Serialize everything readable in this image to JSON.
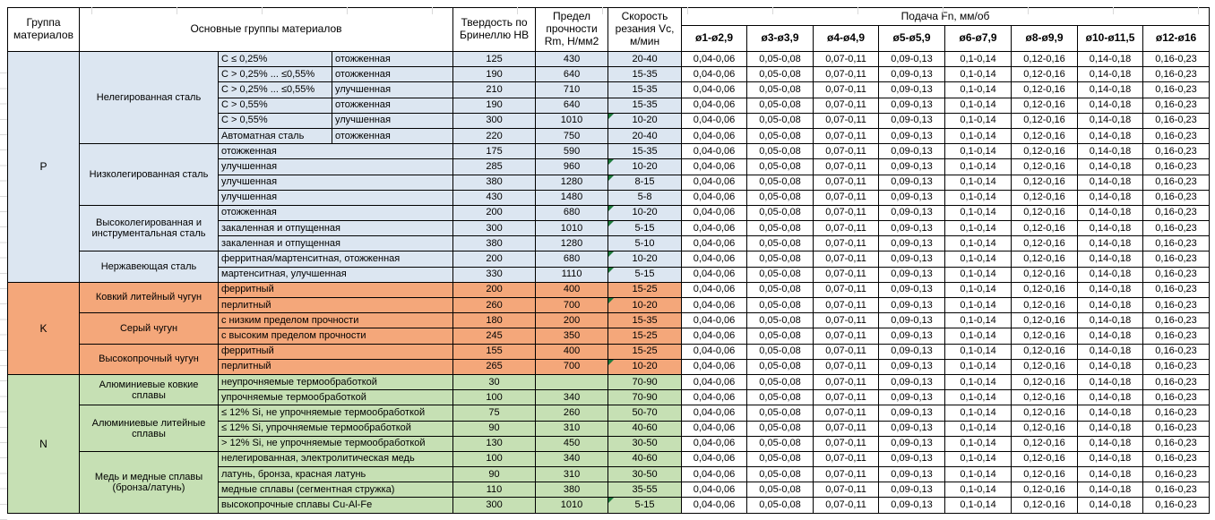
{
  "header": {
    "group_col": "Группа материалов",
    "main_col": "Основные группы материалов",
    "hardness_col": "Твердость по Бринеллю HB",
    "strength_col": "Предел прочности Rm, Н/мм2",
    "speed_col": "Скорость резания Vc, м/мин",
    "feed_title": "Подача Fn, мм/об",
    "feed_cols": [
      "ø1-ø2,9",
      "ø3-ø3,9",
      "ø4-ø4,9",
      "ø5-ø5,9",
      "ø6-ø7,9",
      "ø8-ø9,9",
      "ø10-ø11,5",
      "ø12-ø16"
    ]
  },
  "feed_values": [
    "0,04-0,06",
    "0,05-0,08",
    "0,07-0,11",
    "0,09-0,13",
    "0,1-0,14",
    "0,12-0,16",
    "0,14-0,18",
    "0,16-0,23"
  ],
  "colors": {
    "steel_blue": "#DCE6F1",
    "cast_iron_orange": "#F4A77A",
    "nonferrous_green": "#C6E0B4",
    "border": "#000000",
    "error_triangle_green": "#1E7B3C"
  },
  "groups": [
    {
      "id": "P",
      "color": "#DCE6F1",
      "subgroups": [
        {
          "name": "Нелегированная сталь",
          "rows": [
            {
              "material": "C ≤ 0,25%",
              "state": "отожженная",
              "hb": "125",
              "rm": "430",
              "vc": "20-40",
              "tri": false
            },
            {
              "material": "C > 0,25% ... ≤0,55%",
              "state": "отожженная",
              "hb": "190",
              "rm": "640",
              "vc": "15-35",
              "tri": false
            },
            {
              "material": "C > 0,25% ... ≤0,55%",
              "state": "улучшенная",
              "hb": "210",
              "rm": "710",
              "vc": "15-35",
              "tri": false
            },
            {
              "material": "C > 0,55%",
              "state": "отожженная",
              "hb": "190",
              "rm": "640",
              "vc": "15-35",
              "tri": false
            },
            {
              "material": "C > 0,55%",
              "state": "улучшенная",
              "hb": "300",
              "rm": "1010",
              "vc": "10-20",
              "tri": true
            },
            {
              "material": "Автоматная сталь",
              "state": "отожженная",
              "hb": "220",
              "rm": "750",
              "vc": "20-40",
              "tri": false
            }
          ]
        },
        {
          "name": "Низколегированная сталь",
          "rows": [
            {
              "material": "отожженная",
              "hb": "175",
              "rm": "590",
              "vc": "15-35",
              "tri": false
            },
            {
              "material": "улучшенная",
              "hb": "285",
              "rm": "960",
              "vc": "10-20",
              "tri": true
            },
            {
              "material": "улучшенная",
              "hb": "380",
              "rm": "1280",
              "vc": "8-15",
              "tri": true
            },
            {
              "material": "улучшенная",
              "hb": "430",
              "rm": "1480",
              "vc": "5-8",
              "tri": false
            }
          ]
        },
        {
          "name": "Высоколегированная и инструментальная сталь",
          "rows": [
            {
              "material": "отожженная",
              "hb": "200",
              "rm": "680",
              "vc": "10-20",
              "tri": true
            },
            {
              "material": "закаленная и отпущенная",
              "hb": "300",
              "rm": "1010",
              "vc": "5-15",
              "tri": true
            },
            {
              "material": "закаленная и отпущенная",
              "hb": "380",
              "rm": "1280",
              "vc": "5-10",
              "tri": false
            }
          ]
        },
        {
          "name": "Нержавеющая сталь",
          "rows": [
            {
              "material": "ферритная/мартенситная, отожженная",
              "hb": "200",
              "rm": "680",
              "vc": "10-20",
              "tri": true
            },
            {
              "material": "мартенситная, улучшенная",
              "hb": "330",
              "rm": "1110",
              "vc": "5-15",
              "tri": true
            }
          ]
        }
      ]
    },
    {
      "id": "K",
      "color": "#F4A77A",
      "subgroups": [
        {
          "name": "Ковкий литейный чугун",
          "rows": [
            {
              "material": "ферритный",
              "hb": "200",
              "rm": "400",
              "vc": "15-25",
              "tri": false
            },
            {
              "material": "перлитный",
              "hb": "260",
              "rm": "700",
              "vc": "10-20",
              "tri": true
            }
          ]
        },
        {
          "name": "Серый чугун",
          "rows": [
            {
              "material": "с низким пределом прочности",
              "hb": "180",
              "rm": "200",
              "vc": "15-35",
              "tri": false
            },
            {
              "material": "с высоким пределом прочности",
              "hb": "245",
              "rm": "350",
              "vc": "15-25",
              "tri": false
            }
          ]
        },
        {
          "name": "Высокопрочный чугун",
          "rows": [
            {
              "material": "ферритный",
              "hb": "155",
              "rm": "400",
              "vc": "15-25",
              "tri": false
            },
            {
              "material": "перлитный",
              "hb": "265",
              "rm": "700",
              "vc": "10-20",
              "tri": true
            }
          ]
        }
      ]
    },
    {
      "id": "N",
      "color": "#C6E0B4",
      "subgroups": [
        {
          "name": "Алюминиевые ковкие сплавы",
          "rows": [
            {
              "material": "неупрочняемые термообработкой",
              "hb": "30",
              "rm": "",
              "vc": "70-90",
              "tri": false
            },
            {
              "material": "упрочняемые термообработкой",
              "hb": "100",
              "rm": "340",
              "vc": "70-90",
              "tri": false
            }
          ]
        },
        {
          "name": "Алюминиевые литейные сплавы",
          "rows": [
            {
              "material": "≤ 12% Si, не упрочняемые термообработкой",
              "hb": "75",
              "rm": "260",
              "vc": "50-70",
              "tri": false
            },
            {
              "material": "≤ 12% Si, упрочняемые термообработкой",
              "hb": "90",
              "rm": "310",
              "vc": "40-60",
              "tri": false
            },
            {
              "material": "> 12% Si, не упрочняемые термообработкой",
              "hb": "130",
              "rm": "450",
              "vc": "30-50",
              "tri": false
            }
          ]
        },
        {
          "name": "Медь и медные сплавы (бронза/латунь)",
          "rows": [
            {
              "material": "нелегированная, электролитическая медь",
              "hb": "100",
              "rm": "340",
              "vc": "40-60",
              "tri": false
            },
            {
              "material": "латунь, бронза, красная латунь",
              "hb": "90",
              "rm": "310",
              "vc": "30-50",
              "tri": false
            },
            {
              "material": "медные сплавы (сегментная стружка)",
              "hb": "110",
              "rm": "380",
              "vc": "35-55",
              "tri": false
            },
            {
              "material": "высокопрочные сплавы Cu-Al-Fe",
              "hb": "300",
              "rm": "1010",
              "vc": "5-15",
              "tri": true
            }
          ]
        }
      ]
    }
  ]
}
